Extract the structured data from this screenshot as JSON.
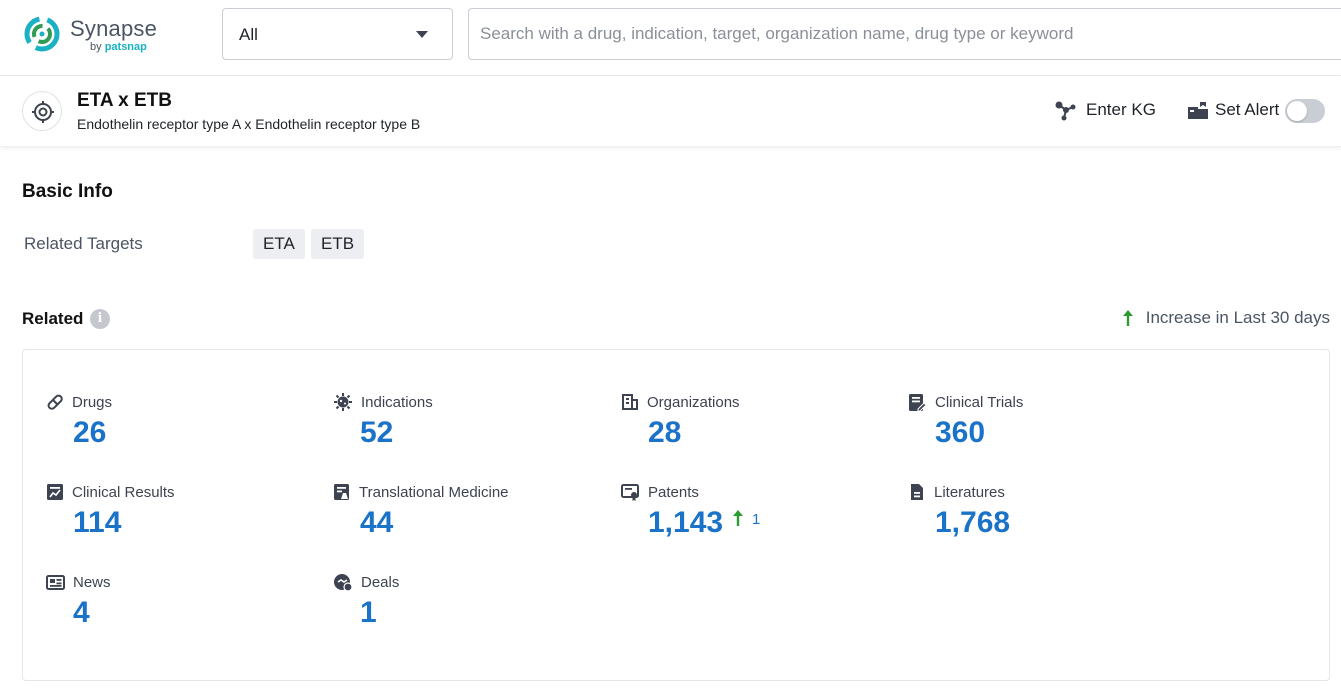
{
  "header": {
    "logo_name": "Synapse",
    "logo_by": "by",
    "logo_brand": "patsnap",
    "scope": "All",
    "search_placeholder": "Search with a drug, indication, target, organization name, drug type or keyword"
  },
  "entity": {
    "icon": "target-icon",
    "title": "ETA x ETB",
    "subtitle": "Endothelin receptor type A x Endothelin receptor type B",
    "enter_kg_label": "Enter KG",
    "set_alert_label": "Set Alert",
    "alert_enabled": false
  },
  "basic_info": {
    "title": "Basic Info",
    "related_targets_label": "Related Targets",
    "targets": [
      "ETA",
      "ETB"
    ]
  },
  "related": {
    "title": "Related",
    "legend": "Increase in Last 30 days",
    "legend_color": "#2e9b33",
    "number_color": "#1a73c8",
    "stats": [
      {
        "name": "Drugs",
        "icon": "pill-icon",
        "value": "26"
      },
      {
        "name": "Indications",
        "icon": "virus-icon",
        "value": "52"
      },
      {
        "name": "Organizations",
        "icon": "building-icon",
        "value": "28"
      },
      {
        "name": "Clinical Trials",
        "icon": "clipboard-pen-icon",
        "value": "360"
      },
      {
        "name": "Clinical Results",
        "icon": "chart-document-icon",
        "value": "114"
      },
      {
        "name": "Translational Medicine",
        "icon": "flask-document-icon",
        "value": "44"
      },
      {
        "name": "Patents",
        "icon": "certificate-icon",
        "value": "1,143",
        "increase": "1"
      },
      {
        "name": "Literatures",
        "icon": "document-icon",
        "value": "1,768"
      },
      {
        "name": "News",
        "icon": "newspaper-icon",
        "value": "4"
      },
      {
        "name": "Deals",
        "icon": "handshake-icon",
        "value": "1"
      }
    ]
  }
}
